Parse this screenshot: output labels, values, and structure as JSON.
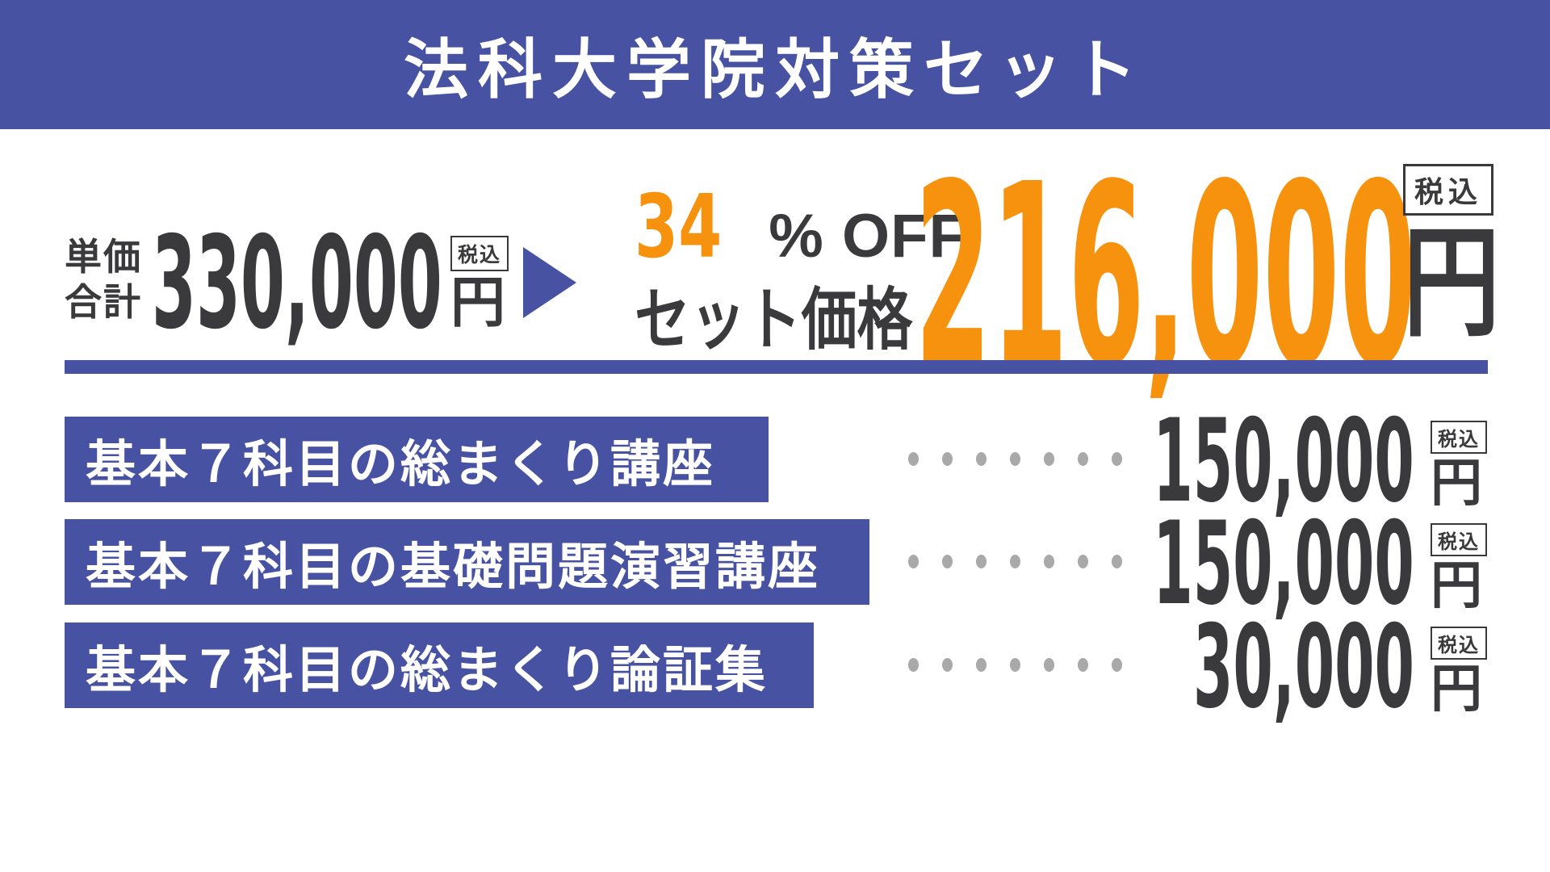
{
  "banner": {
    "title": "法科大学院対策セット"
  },
  "labels": {
    "tax_included": "税込",
    "yen": "円"
  },
  "comparison": {
    "unit_label_line1": "単価",
    "unit_label_line2": "合計",
    "unit_total_price": "330,000",
    "discount_percent": "34",
    "discount_suffix": "% OFF",
    "set_price_label": "セット価格",
    "set_price": "216,000"
  },
  "courses": [
    {
      "label": "基本７科目の総まくり講座",
      "price": "150,000"
    },
    {
      "label": "基本７科目の基礎問題演習講座",
      "price": "150,000"
    },
    {
      "label": "基本７科目の総まくり論証集",
      "price": "30,000"
    }
  ],
  "colors": {
    "brand_blue": "#4852a2",
    "accent_orange": "#f6920d",
    "text_dark": "#3a3a3c",
    "dot_gray": "#a9a9a9"
  }
}
